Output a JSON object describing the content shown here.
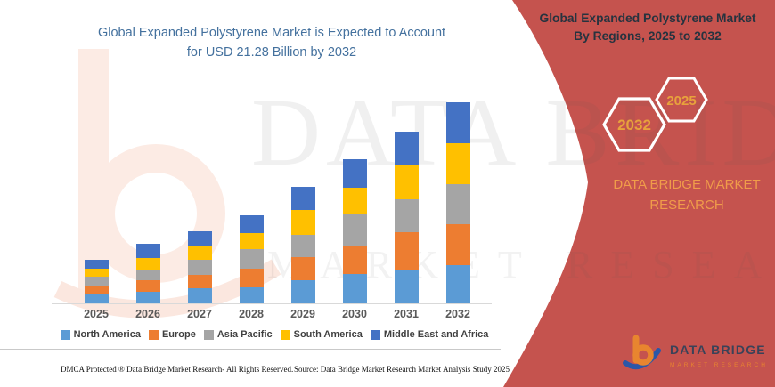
{
  "left_panel": {
    "title_line1": "Global Expanded Polystyrene Market is Expected to Account",
    "title_line2": "for USD 21.28 Billion by 2032"
  },
  "chart_data": {
    "type": "bar",
    "stacked": true,
    "title": "Global Expanded Polystyrene Market is Expected to Account for USD 21.28 Billion by 2032",
    "unit": "USD Billion",
    "categories": [
      "2025",
      "2026",
      "2027",
      "2028",
      "2029",
      "2030",
      "2031",
      "2032"
    ],
    "series": [
      {
        "name": "North America",
        "color": "#5B9BD5",
        "values": [
          1.0,
          1.2,
          1.6,
          1.7,
          2.5,
          3.1,
          3.5,
          4.1
        ]
      },
      {
        "name": "Europe",
        "color": "#ED7D31",
        "values": [
          0.9,
          1.3,
          1.4,
          2.0,
          2.4,
          3.0,
          4.0,
          4.3
        ]
      },
      {
        "name": "Asia Pacific",
        "color": "#A5A5A5",
        "values": [
          0.9,
          1.1,
          1.6,
          2.1,
          2.4,
          3.4,
          3.5,
          4.2
        ]
      },
      {
        "name": "South America",
        "color": "#FFC000",
        "values": [
          0.9,
          1.2,
          1.5,
          1.7,
          2.6,
          2.7,
          3.7,
          4.4
        ]
      },
      {
        "name": "Middle East and Africa",
        "color": "#4472C4",
        "values": [
          0.9,
          1.5,
          1.5,
          1.8,
          2.4,
          3.1,
          3.5,
          4.28
        ]
      }
    ],
    "totals": [
      4.6,
      6.3,
      7.6,
      9.3,
      12.3,
      15.3,
      18.2,
      21.28
    ],
    "ylim": [
      0,
      22.7
    ],
    "grid": false,
    "y_axis_visible": false,
    "legend_position": "bottom"
  },
  "right_panel": {
    "heading_line1": "Global Expanded Polystyrene Market",
    "heading_line2": "By Regions, 2025 to 2032",
    "hexagons": [
      {
        "label": "2032"
      },
      {
        "label": "2025"
      }
    ],
    "brand_line1": "DATA BRIDGE MARKET",
    "brand_line2": "RESEARCH",
    "logo_name": "DATA BRIDGE",
    "logo_tagline": "MARKET RESEARCH",
    "panel_color": "#c5534e",
    "accent_text_color": "#f09c4a"
  },
  "watermark": {
    "line1": "DATA BRIDGE",
    "line2": "MARKET RESEARCH"
  },
  "footer": {
    "dmca": "DMCA Protected ® Data Bridge Market Research- All Rights Reserved.",
    "source": "Source: Data Bridge Market Research Market Analysis Study 2025"
  }
}
